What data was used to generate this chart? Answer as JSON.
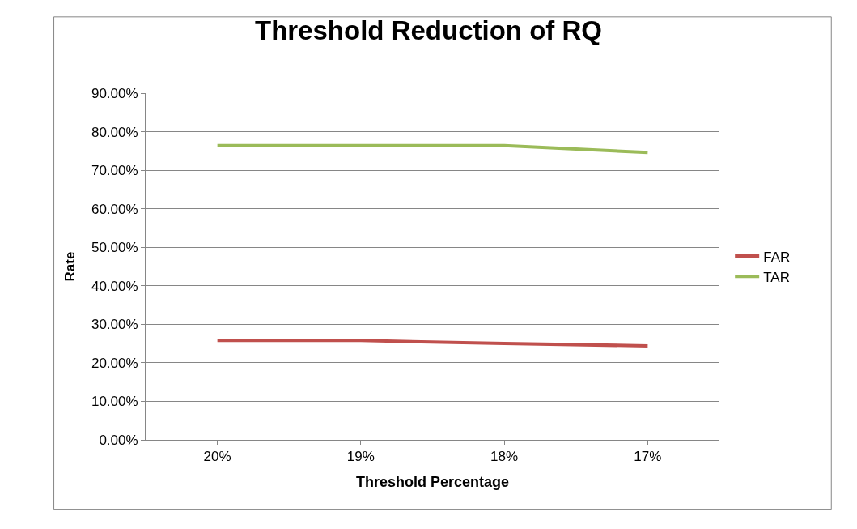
{
  "chart_data": {
    "type": "line",
    "title": "Threshold Reduction of RQ",
    "xlabel": "Threshold Percentage",
    "ylabel": "Rate",
    "categories": [
      "20%",
      "19%",
      "18%",
      "17%"
    ],
    "series": [
      {
        "name": "FAR",
        "color": "#c0504d",
        "values": [
          25.8,
          25.8,
          25.0,
          24.4
        ]
      },
      {
        "name": "TAR",
        "color": "#9bbb59",
        "values": [
          76.4,
          76.4,
          76.4,
          74.6
        ]
      }
    ],
    "ylim": [
      0,
      90
    ],
    "yticks": [
      {
        "value": 0,
        "label": "0.00%"
      },
      {
        "value": 10,
        "label": "10.00%"
      },
      {
        "value": 20,
        "label": "20.00%"
      },
      {
        "value": 30,
        "label": "30.00%"
      },
      {
        "value": 40,
        "label": "40.00%"
      },
      {
        "value": 50,
        "label": "50.00%"
      },
      {
        "value": 60,
        "label": "60.00%"
      },
      {
        "value": 70,
        "label": "70.00%"
      },
      {
        "value": 80,
        "label": "80.00%"
      },
      {
        "value": 90,
        "label": "90.00%"
      }
    ],
    "grid": "y",
    "legend": "right",
    "marker": "none",
    "line_style": "solid"
  }
}
